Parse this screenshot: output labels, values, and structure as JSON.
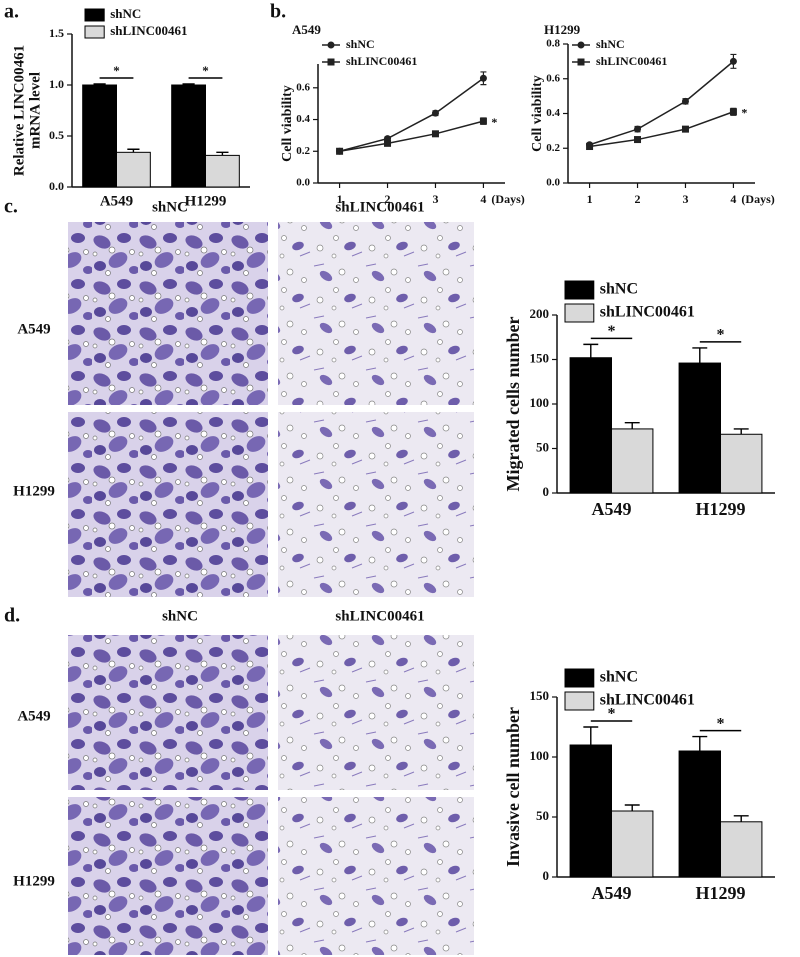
{
  "panels": [
    "a.",
    "b.",
    "c.",
    "d."
  ],
  "micrographs": {
    "c": {
      "columns": [
        "shNC",
        "shLINC00461"
      ],
      "rows": [
        "A549",
        "H1299"
      ]
    },
    "d": {
      "columns": [
        "shNC",
        "shLINC00461"
      ],
      "rows": [
        "A549",
        "H1299"
      ]
    }
  },
  "chart_data": [
    {
      "type": "bar",
      "ylabel": [
        "Relative LINC00461",
        "mRNA level"
      ],
      "categories": [
        "A549",
        "H1299"
      ],
      "series": [
        {
          "name": "shNC",
          "color": "#000000",
          "values": [
            1.0,
            1.0
          ],
          "errors": [
            0.01,
            0.01
          ]
        },
        {
          "name": "shLINC00461",
          "color": "#d9d9d9",
          "values": [
            0.34,
            0.31
          ],
          "errors": [
            0.03,
            0.03
          ]
        }
      ],
      "significance": [
        "*",
        "*"
      ],
      "ylim": [
        0,
        1.5
      ],
      "yticks": [
        {
          "value": 0,
          "label": "0.0"
        },
        0.5,
        {
          "value": 1,
          "label": "1.0"
        },
        1.5
      ]
    },
    {
      "type": "line",
      "title": "A549",
      "ylabel": [
        "Cell viability"
      ],
      "xlabel": "(Days)",
      "x": [
        1,
        2,
        3,
        4
      ],
      "series": [
        {
          "name": "shNC",
          "color": "#222222",
          "marker": "circle",
          "values": [
            0.2,
            0.28,
            0.44,
            0.66
          ],
          "errors": [
            0.01,
            0.01,
            0.015,
            0.04
          ]
        },
        {
          "name": "shLINC00461",
          "color": "#222222",
          "marker": "square",
          "values": [
            0.2,
            0.25,
            0.31,
            0.39
          ],
          "errors": [
            0.01,
            0.01,
            0.01,
            0.02
          ]
        }
      ],
      "annotation": "*",
      "xlim": [
        0.55,
        4.45
      ],
      "xticks": [
        1,
        2,
        3,
        4
      ],
      "ylim": [
        0,
        0.75
      ],
      "yticks": [
        {
          "value": 0,
          "label": "0.0"
        },
        0.2,
        0.4,
        0.6
      ]
    },
    {
      "type": "line",
      "title": "H1299",
      "ylabel": [
        "Cell viability"
      ],
      "xlabel": "(Days)",
      "x": [
        1,
        2,
        3,
        4
      ],
      "series": [
        {
          "name": "shNC",
          "color": "#222222",
          "marker": "circle",
          "values": [
            0.22,
            0.31,
            0.47,
            0.7
          ],
          "errors": [
            0.01,
            0.015,
            0.015,
            0.04
          ]
        },
        {
          "name": "shLINC00461",
          "color": "#222222",
          "marker": "square",
          "values": [
            0.21,
            0.25,
            0.31,
            0.41
          ],
          "errors": [
            0.01,
            0.01,
            0.01,
            0.02
          ]
        }
      ],
      "annotation": "*",
      "xlim": [
        0.55,
        4.45
      ],
      "xticks": [
        1,
        2,
        3,
        4
      ],
      "ylim": [
        0,
        0.8
      ],
      "yticks": [
        {
          "value": 0,
          "label": "0.0"
        },
        0.2,
        0.4,
        0.6,
        0.8
      ]
    },
    {
      "type": "bar",
      "ylabel": [
        "Migrated cells number"
      ],
      "categories": [
        "A549",
        "H1299"
      ],
      "series": [
        {
          "name": "shNC",
          "color": "#000000",
          "values": [
            152,
            146
          ],
          "errors": [
            15,
            17
          ]
        },
        {
          "name": "shLINC00461",
          "color": "#d9d9d9",
          "values": [
            72,
            66
          ],
          "errors": [
            7,
            6
          ]
        }
      ],
      "significance": [
        "*",
        "*"
      ],
      "ylim": [
        0,
        200
      ],
      "yticks": [
        0,
        50,
        100,
        150,
        200
      ]
    },
    {
      "type": "bar",
      "ylabel": [
        "Invasive cell number"
      ],
      "categories": [
        "A549",
        "H1299"
      ],
      "series": [
        {
          "name": "shNC",
          "color": "#000000",
          "values": [
            110,
            105
          ],
          "errors": [
            15,
            12
          ]
        },
        {
          "name": "shLINC00461",
          "color": "#d9d9d9",
          "values": [
            55,
            46
          ],
          "errors": [
            5,
            5
          ]
        }
      ],
      "significance": [
        "*",
        "*"
      ],
      "ylim": [
        0,
        150
      ],
      "yticks": [
        0,
        50,
        100,
        150
      ]
    }
  ]
}
